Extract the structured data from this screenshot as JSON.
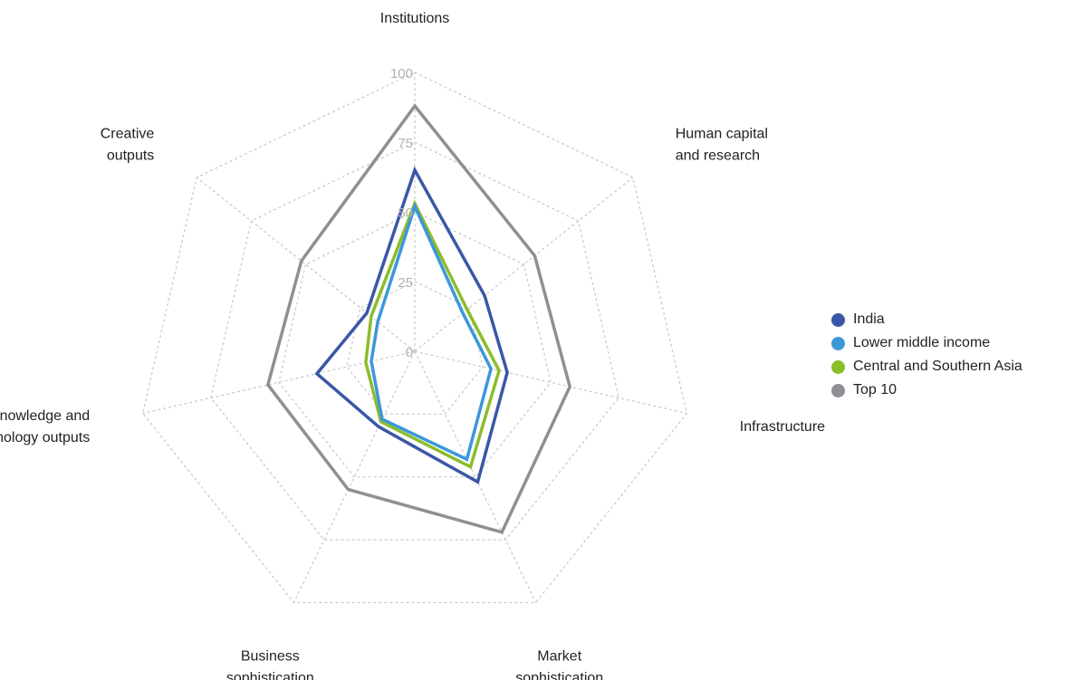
{
  "chart_data": {
    "type": "radar",
    "title": "",
    "axes": [
      [
        "Institutions"
      ],
      [
        "Human capital",
        "and research"
      ],
      [
        "Infrastructure"
      ],
      [
        "Market",
        "sophistication"
      ],
      [
        "Business",
        "sophistication"
      ],
      [
        "Knowledge and",
        "technology outputs"
      ],
      [
        "Creative",
        "outputs"
      ]
    ],
    "range": [
      0,
      100
    ],
    "ticks": [
      "0",
      "25",
      "50",
      "75",
      "100"
    ],
    "tick_values": [
      0,
      25,
      50,
      75,
      100
    ],
    "grid": true,
    "legend_position": "right",
    "series": [
      {
        "name": "India",
        "color": "#3a57a7",
        "values": [
          65,
          32,
          34,
          52,
          30,
          36,
          22
        ]
      },
      {
        "name": "Lower middle income",
        "color": "#3c97d9",
        "values": [
          52,
          22,
          28,
          43,
          27,
          16,
          17
        ]
      },
      {
        "name": "Central and Southern Asia",
        "color": "#8cbd2b",
        "values": [
          53,
          24,
          31,
          46,
          28,
          18,
          20
        ]
      },
      {
        "name": "Top 10",
        "color": "#8f9095",
        "values": [
          88,
          55,
          57,
          72,
          55,
          54,
          52
        ]
      }
    ]
  }
}
